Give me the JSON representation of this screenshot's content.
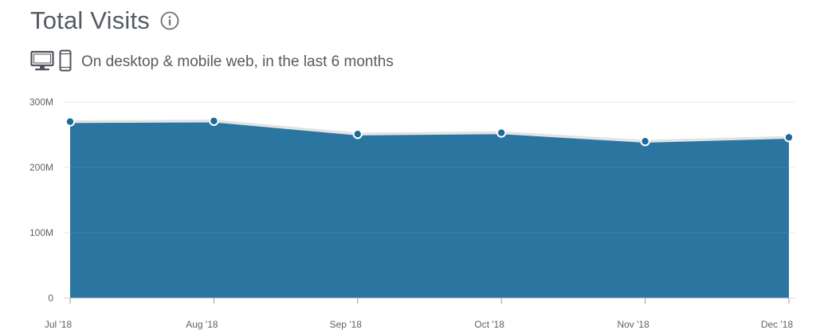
{
  "header": {
    "title": "Total Visits",
    "info_icon": "info-circle-icon",
    "subtitle": "On desktop & mobile web, in the last 6 months",
    "device_icons": [
      "desktop-monitor-icon",
      "mobile-phone-icon"
    ]
  },
  "colors": {
    "area_fill": "#2a76a0",
    "line": "#e3e3e3",
    "marker_fill": "#1f6a99",
    "marker_stroke": "#ffffff",
    "grid": "#e8e8e8",
    "text": "#555b61"
  },
  "chart_data": {
    "type": "area",
    "categories": [
      "Jul '18",
      "Aug '18",
      "Sep '18",
      "Oct '18",
      "Nov '18",
      "Dec '18"
    ],
    "values": [
      270000000,
      271000000,
      251000000,
      253000000,
      240000000,
      246000000
    ],
    "ylim": [
      0,
      300000000
    ],
    "yticks": [
      0,
      100000000,
      200000000,
      300000000
    ],
    "ytick_labels": [
      "0",
      "100M",
      "200M",
      "300M"
    ],
    "grid": true,
    "markers": true
  }
}
